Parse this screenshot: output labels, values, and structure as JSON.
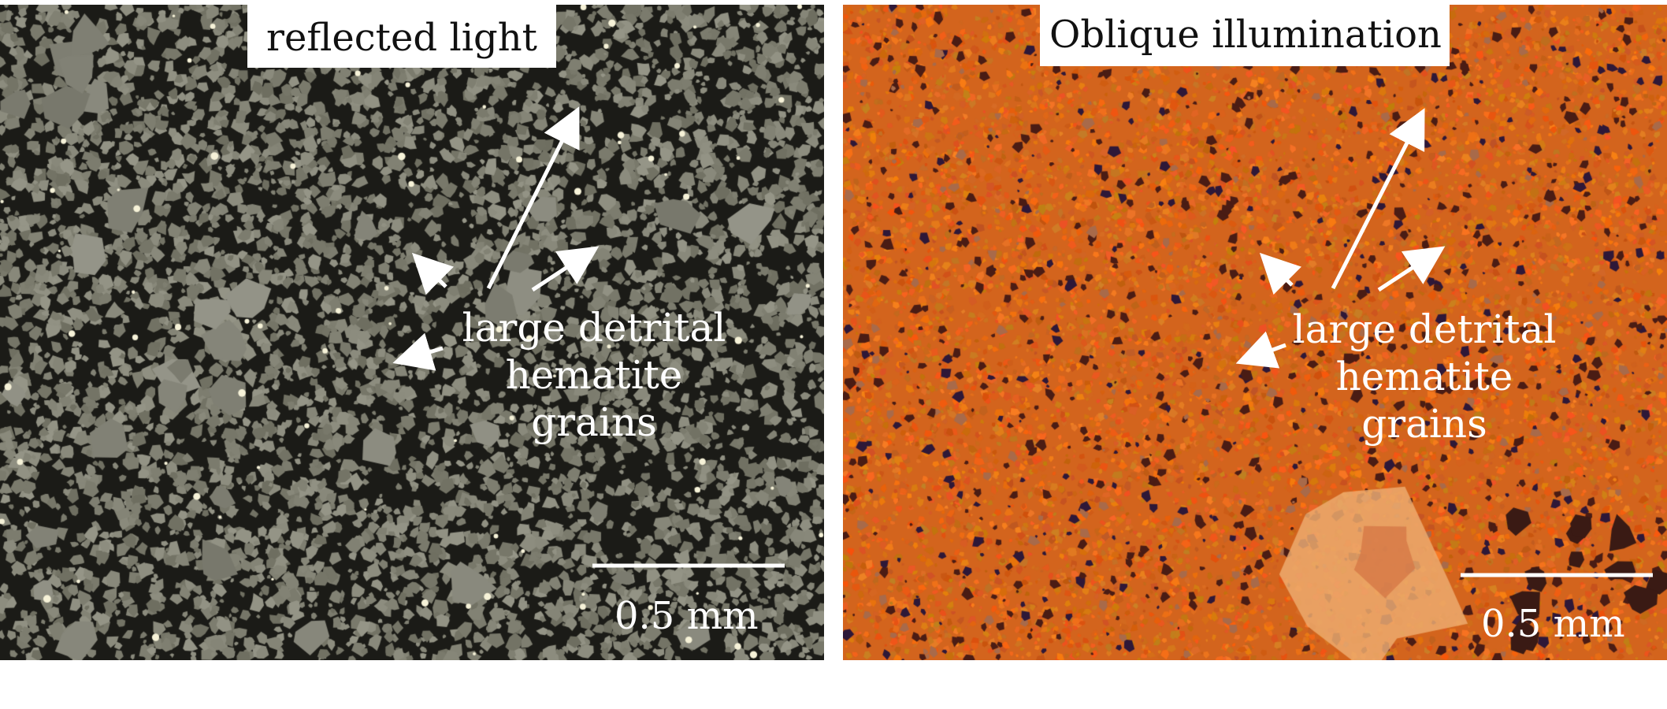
{
  "panels": {
    "left": {
      "title": "reflected light",
      "annotation": [
        "large detrital",
        "hematite",
        "grains"
      ],
      "scale_bar_label": "0.5 mm"
    },
    "right": {
      "title": "Oblique illumination",
      "annotation": [
        "large detrital",
        "hematite",
        "grains"
      ],
      "scale_bar_label": "0.5 mm"
    }
  },
  "colors": {
    "left_background": "#1b1b17",
    "left_grains": "#8a8a7a",
    "right_background": "#d3641d",
    "right_dark_grains": "#3a1a14",
    "annotation": "#ffffff"
  }
}
